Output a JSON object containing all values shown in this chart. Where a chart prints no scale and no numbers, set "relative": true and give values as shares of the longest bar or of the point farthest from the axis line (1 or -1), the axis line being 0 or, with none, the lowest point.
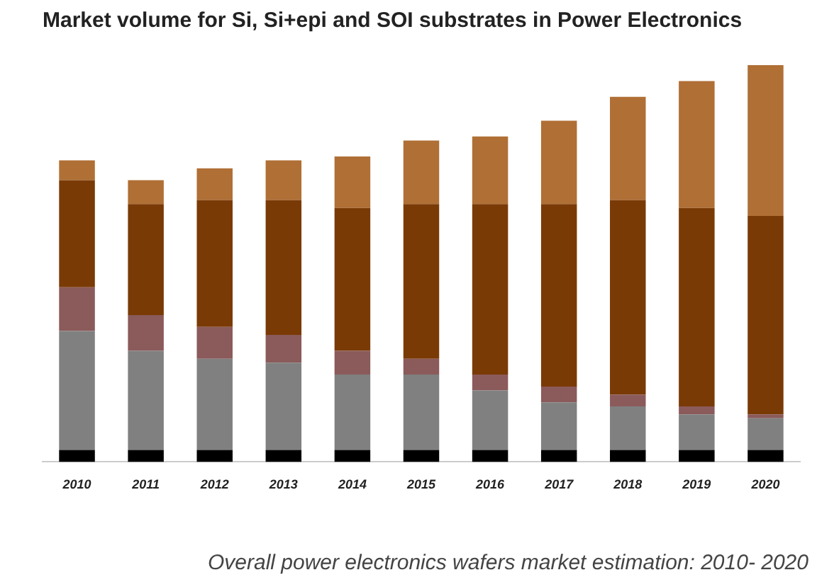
{
  "chart_data": {
    "type": "bar",
    "title": "Market volume for Si, Si+epi and SOI substrates in Power Electronics",
    "categories": [
      "2010",
      "2011",
      "2012",
      "2013",
      "2014",
      "2015",
      "2016",
      "2017",
      "2018",
      "2019",
      "2020"
    ],
    "stacked": true,
    "relative": true,
    "legend": false,
    "series": [
      {
        "color": "#000000",
        "values": [
          0.03,
          0.03,
          0.03,
          0.03,
          0.03,
          0.03,
          0.03,
          0.03,
          0.03,
          0.03,
          0.03
        ]
      },
      {
        "color": "#808080",
        "values": [
          0.3,
          0.25,
          0.23,
          0.22,
          0.19,
          0.19,
          0.15,
          0.12,
          0.11,
          0.09,
          0.08
        ]
      },
      {
        "color": "#8b5a5a",
        "values": [
          0.11,
          0.09,
          0.08,
          0.07,
          0.06,
          0.04,
          0.04,
          0.04,
          0.03,
          0.02,
          0.01
        ]
      },
      {
        "color": "#7a3a05",
        "values": [
          0.27,
          0.28,
          0.32,
          0.34,
          0.36,
          0.39,
          0.43,
          0.46,
          0.49,
          0.5,
          0.5
        ]
      },
      {
        "color": "#b06f35",
        "values": [
          0.05,
          0.06,
          0.08,
          0.1,
          0.13,
          0.16,
          0.17,
          0.21,
          0.26,
          0.32,
          0.38
        ]
      }
    ],
    "annotations": [
      "Overall power electronics wafers market estimation: 2010- 2020"
    ]
  }
}
